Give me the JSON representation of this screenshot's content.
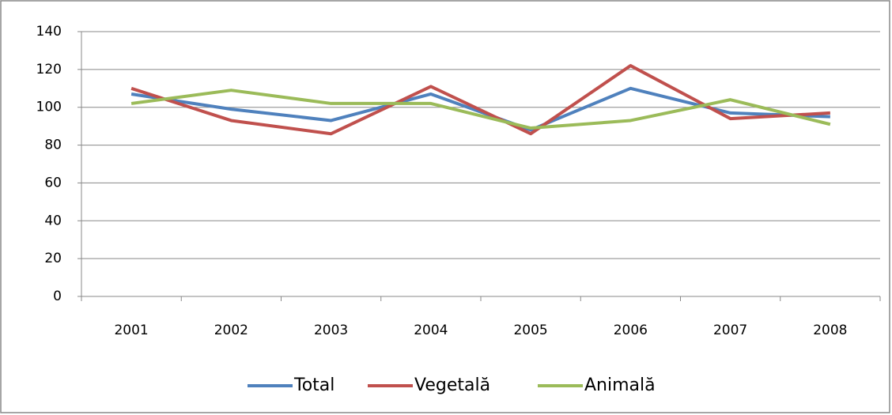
{
  "chart_data": {
    "type": "line",
    "categories": [
      "2001",
      "2002",
      "2003",
      "2004",
      "2005",
      "2006",
      "2007",
      "2008"
    ],
    "series": [
      {
        "name": "Total",
        "color": "#4f81bd",
        "values": [
          107,
          99,
          93,
          107,
          88,
          110,
          97,
          95
        ]
      },
      {
        "name": "Vegetală",
        "color": "#c0504d",
        "values": [
          110,
          93,
          86,
          111,
          86,
          122,
          94,
          97
        ]
      },
      {
        "name": "Animală",
        "color": "#9bbb59",
        "values": [
          102,
          109,
          102,
          102,
          89,
          93,
          104,
          91
        ]
      }
    ],
    "ylim": [
      0,
      140
    ],
    "yticks": [
      0,
      20,
      40,
      60,
      80,
      100,
      120,
      140
    ],
    "grid": true,
    "legend": "bottom"
  }
}
